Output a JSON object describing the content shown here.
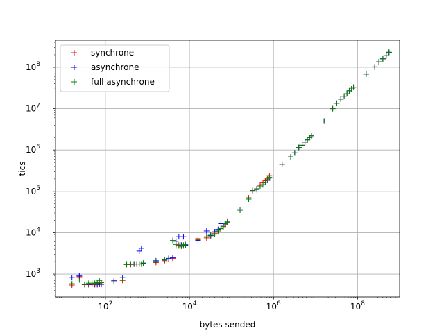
{
  "chart_data": {
    "type": "scatter",
    "title": "",
    "xlabel": "bytes sended",
    "ylabel": "tics",
    "xscale": "log",
    "yscale": "log",
    "xlim": [
      6.5,
      1000000000
    ],
    "ylim": [
      280,
      450000000
    ],
    "xticks": [
      {
        "value": 100,
        "base": "10",
        "exp": "2"
      },
      {
        "value": 10000,
        "base": "10",
        "exp": "4"
      },
      {
        "value": 1000000,
        "base": "10",
        "exp": "6"
      },
      {
        "value": 100000000,
        "base": "10",
        "exp": "8"
      }
    ],
    "yticks": [
      {
        "value": 1000,
        "base": "10",
        "exp": "3"
      },
      {
        "value": 10000,
        "base": "10",
        "exp": "4"
      },
      {
        "value": 100000,
        "base": "10",
        "exp": "5"
      },
      {
        "value": 1000000,
        "base": "10",
        "exp": "6"
      },
      {
        "value": 10000000,
        "base": "10",
        "exp": "7"
      },
      {
        "value": 100000000,
        "base": "10",
        "exp": "8"
      }
    ],
    "grid": true,
    "legend_position": "top-left",
    "marker": "+",
    "series": [
      {
        "name": "synchrone",
        "color": "#ff0000",
        "points": [
          [
            16,
            540
          ],
          [
            24,
            860
          ],
          [
            32,
            550
          ],
          [
            40,
            550
          ],
          [
            48,
            550
          ],
          [
            56,
            550
          ],
          [
            64,
            550
          ],
          [
            72,
            600
          ],
          [
            80,
            560
          ],
          [
            160,
            650
          ],
          [
            256,
            700
          ],
          [
            320,
            1700
          ],
          [
            400,
            1700
          ],
          [
            480,
            1750
          ],
          [
            560,
            1750
          ],
          [
            640,
            1750
          ],
          [
            720,
            1750
          ],
          [
            800,
            1800
          ],
          [
            1600,
            1900
          ],
          [
            2560,
            2100
          ],
          [
            3200,
            2300
          ],
          [
            4000,
            2400
          ],
          [
            4800,
            4800
          ],
          [
            5600,
            5000
          ],
          [
            6400,
            5000
          ],
          [
            7200,
            4800
          ],
          [
            8000,
            5000
          ],
          [
            16000,
            6800
          ],
          [
            25600,
            7500
          ],
          [
            32000,
            8500
          ],
          [
            40000,
            9500
          ],
          [
            48000,
            11000
          ],
          [
            56000,
            12500
          ],
          [
            64000,
            14000
          ],
          [
            72000,
            16000
          ],
          [
            80000,
            19000
          ],
          [
            160000,
            35000
          ],
          [
            256000,
            70000
          ],
          [
            320000,
            100000
          ],
          [
            400000,
            115000
          ],
          [
            480000,
            140000
          ],
          [
            560000,
            160000
          ],
          [
            640000,
            180000
          ],
          [
            720000,
            200000
          ],
          [
            800000,
            240000
          ],
          [
            1600000,
            450000
          ],
          [
            2560000,
            680000
          ],
          [
            3200000,
            850000
          ],
          [
            4000000,
            1150000
          ],
          [
            4800000,
            1300000
          ],
          [
            5600000,
            1550000
          ],
          [
            6400000,
            1750000
          ],
          [
            7200000,
            2000000
          ],
          [
            8000000,
            2200000
          ],
          [
            16000000,
            5000000
          ],
          [
            25600000,
            10000000
          ],
          [
            32000000,
            13500000
          ],
          [
            40000000,
            17000000
          ],
          [
            48000000,
            20000000
          ],
          [
            56000000,
            23000000
          ],
          [
            64000000,
            27000000
          ],
          [
            72000000,
            30000000
          ],
          [
            80000000,
            33000000
          ],
          [
            160000000,
            68000000
          ],
          [
            256000000,
            102000000
          ],
          [
            320000000,
            135000000
          ],
          [
            400000000,
            160000000
          ],
          [
            480000000,
            190000000
          ],
          [
            560000000,
            230000000
          ]
        ]
      },
      {
        "name": "asynchrone",
        "color": "#0000ff",
        "points": [
          [
            16,
            820
          ],
          [
            24,
            900
          ],
          [
            32,
            560
          ],
          [
            40,
            560
          ],
          [
            48,
            570
          ],
          [
            56,
            570
          ],
          [
            64,
            580
          ],
          [
            72,
            560
          ],
          [
            80,
            560
          ],
          [
            160,
            700
          ],
          [
            256,
            820
          ],
          [
            320,
            1750
          ],
          [
            400,
            1750
          ],
          [
            480,
            1750
          ],
          [
            560,
            1750
          ],
          [
            640,
            3600
          ],
          [
            720,
            4200
          ],
          [
            800,
            1800
          ],
          [
            1600,
            2100
          ],
          [
            2560,
            2200
          ],
          [
            3200,
            2400
          ],
          [
            4000,
            2500
          ],
          [
            4800,
            6200
          ],
          [
            5600,
            8000
          ],
          [
            6400,
            5000
          ],
          [
            7200,
            8000
          ],
          [
            8000,
            5000
          ],
          [
            16000,
            6500
          ],
          [
            25600,
            11000
          ],
          [
            32000,
            8500
          ],
          [
            40000,
            10500
          ],
          [
            48000,
            12000
          ],
          [
            56000,
            16500
          ],
          [
            64000,
            15000
          ],
          [
            72000,
            16500
          ],
          [
            80000,
            18000
          ],
          [
            160000,
            36000
          ],
          [
            256000,
            65000
          ],
          [
            320000,
            105000
          ],
          [
            400000,
            115000
          ],
          [
            480000,
            130000
          ],
          [
            560000,
            145000
          ],
          [
            640000,
            165000
          ],
          [
            720000,
            185000
          ],
          [
            800000,
            210000
          ],
          [
            1600000,
            450000
          ],
          [
            2560000,
            680000
          ],
          [
            3200000,
            850000
          ],
          [
            4000000,
            1150000
          ],
          [
            4800000,
            1300000
          ],
          [
            5600000,
            1550000
          ],
          [
            6400000,
            1750000
          ],
          [
            7200000,
            2000000
          ],
          [
            8000000,
            2200000
          ],
          [
            16000000,
            5000000
          ],
          [
            25600000,
            10000000
          ],
          [
            32000000,
            13500000
          ],
          [
            40000000,
            17000000
          ],
          [
            48000000,
            20000000
          ],
          [
            56000000,
            23000000
          ],
          [
            64000000,
            27000000
          ],
          [
            72000000,
            30000000
          ],
          [
            80000000,
            33000000
          ],
          [
            160000000,
            68000000
          ],
          [
            256000000,
            102000000
          ],
          [
            320000000,
            135000000
          ],
          [
            400000000,
            160000000
          ],
          [
            480000000,
            190000000
          ],
          [
            560000000,
            230000000
          ]
        ]
      },
      {
        "name": "full asynchrone",
        "color": "#008000",
        "points": [
          [
            16,
            580
          ],
          [
            24,
            720
          ],
          [
            32,
            560
          ],
          [
            40,
            600
          ],
          [
            48,
            600
          ],
          [
            56,
            600
          ],
          [
            64,
            620
          ],
          [
            72,
            700
          ],
          [
            80,
            620
          ],
          [
            160,
            650
          ],
          [
            256,
            720
          ],
          [
            320,
            1700
          ],
          [
            400,
            1750
          ],
          [
            480,
            1750
          ],
          [
            560,
            1750
          ],
          [
            640,
            1750
          ],
          [
            720,
            1750
          ],
          [
            800,
            1850
          ],
          [
            1600,
            2000
          ],
          [
            2560,
            2200
          ],
          [
            3200,
            2300
          ],
          [
            4000,
            6500
          ],
          [
            4800,
            5200
          ],
          [
            5600,
            4800
          ],
          [
            6400,
            4700
          ],
          [
            7200,
            5000
          ],
          [
            8000,
            5200
          ],
          [
            16000,
            7200
          ],
          [
            25600,
            8000
          ],
          [
            32000,
            8700
          ],
          [
            40000,
            9200
          ],
          [
            48000,
            11000
          ],
          [
            56000,
            12500
          ],
          [
            64000,
            14000
          ],
          [
            72000,
            16500
          ],
          [
            80000,
            18000
          ],
          [
            160000,
            35000
          ],
          [
            256000,
            65000
          ],
          [
            320000,
            105000
          ],
          [
            400000,
            110000
          ],
          [
            480000,
            130000
          ],
          [
            560000,
            145000
          ],
          [
            640000,
            165000
          ],
          [
            720000,
            190000
          ],
          [
            800000,
            220000
          ],
          [
            1600000,
            450000
          ],
          [
            2560000,
            680000
          ],
          [
            3200000,
            850000
          ],
          [
            4000000,
            1150000
          ],
          [
            4800000,
            1300000
          ],
          [
            5600000,
            1550000
          ],
          [
            6400000,
            1750000
          ],
          [
            7200000,
            2000000
          ],
          [
            8000000,
            2200000
          ],
          [
            16000000,
            5000000
          ],
          [
            25600000,
            10000000
          ],
          [
            32000000,
            13500000
          ],
          [
            40000000,
            17000000
          ],
          [
            48000000,
            20000000
          ],
          [
            56000000,
            23000000
          ],
          [
            64000000,
            27000000
          ],
          [
            72000000,
            30000000
          ],
          [
            80000000,
            33000000
          ],
          [
            160000000,
            68000000
          ],
          [
            256000000,
            102000000
          ],
          [
            320000000,
            135000000
          ],
          [
            400000000,
            160000000
          ],
          [
            480000000,
            190000000
          ],
          [
            560000000,
            230000000
          ]
        ]
      }
    ]
  }
}
